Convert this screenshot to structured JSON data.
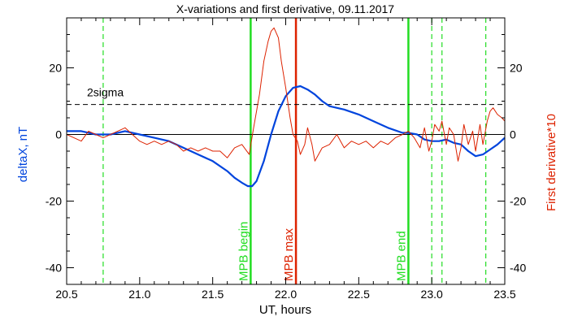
{
  "chart_data": {
    "type": "line",
    "title": "X-variations and first derivative, 09.11.2017",
    "xlabel": "UT, hours",
    "ylabel_left": "deltaX, nT",
    "ylabel_right": "First derivative*10",
    "xlim": [
      20.5,
      23.5
    ],
    "ylim": [
      -45,
      35
    ],
    "xticks": [
      20.5,
      21.0,
      21.5,
      22.0,
      22.5,
      23.0,
      23.5
    ],
    "xtick_labels": [
      "20.5",
      "21.0",
      "21.5",
      "22.0",
      "22.5",
      "23.0",
      "23.5"
    ],
    "yticks": [
      -40,
      -20,
      0,
      20
    ],
    "ytick_labels": [
      "-40",
      "-20",
      "0",
      "20"
    ],
    "grid": false,
    "colors": {
      "deltaX": "#0044dd",
      "derivative": "#dd2200",
      "mpb": "#22dd22",
      "max": "#dd2200",
      "threshold": "#000000"
    },
    "threshold": {
      "label": "2sigma",
      "value": 9
    },
    "zero_line": 0,
    "vlines_solid": [
      {
        "x": 21.76,
        "label": "MPB begin",
        "color": "#22dd22"
      },
      {
        "x": 22.07,
        "label": "MPB max",
        "color": "#dd2200"
      },
      {
        "x": 22.84,
        "label": "MPB end",
        "color": "#22dd22"
      }
    ],
    "vlines_dashed": [
      20.75,
      23.0,
      23.07,
      23.37
    ],
    "series": [
      {
        "key": "deltaX",
        "color": "#0044dd",
        "x": [
          20.5,
          20.6,
          20.7,
          20.8,
          20.9,
          21.0,
          21.1,
          21.2,
          21.3,
          21.4,
          21.5,
          21.6,
          21.65,
          21.7,
          21.74,
          21.77,
          21.8,
          21.85,
          21.9,
          21.95,
          22.0,
          22.05,
          22.1,
          22.15,
          22.2,
          22.25,
          22.3,
          22.4,
          22.5,
          22.6,
          22.7,
          22.8,
          22.84,
          22.9,
          22.95,
          23.0,
          23.05,
          23.1,
          23.15,
          23.2,
          23.25,
          23.3,
          23.35,
          23.4,
          23.45,
          23.5
        ],
        "y": [
          1,
          1,
          0,
          0,
          1,
          0,
          -1,
          -2,
          -4,
          -6,
          -8,
          -11,
          -13,
          -14.5,
          -15.5,
          -15.5,
          -14,
          -8,
          0,
          7,
          11.5,
          14,
          14.5,
          13.5,
          12,
          10,
          8.5,
          7.5,
          6,
          4,
          2,
          0.5,
          0.5,
          0,
          -1.5,
          -2,
          -2,
          -1.5,
          -2.5,
          -3,
          -5,
          -6.5,
          -6,
          -4.5,
          -3,
          -1
        ]
      },
      {
        "key": "derivative",
        "color": "#dd2200",
        "x": [
          20.5,
          20.55,
          20.6,
          20.65,
          20.7,
          20.75,
          20.8,
          20.85,
          20.9,
          20.95,
          21.0,
          21.05,
          21.1,
          21.15,
          21.2,
          21.25,
          21.3,
          21.35,
          21.4,
          21.45,
          21.5,
          21.55,
          21.6,
          21.65,
          21.7,
          21.75,
          21.78,
          21.82,
          21.85,
          21.88,
          21.9,
          21.92,
          21.95,
          21.97,
          22.0,
          22.03,
          22.05,
          22.08,
          22.1,
          22.13,
          22.15,
          22.18,
          22.2,
          22.25,
          22.3,
          22.35,
          22.4,
          22.45,
          22.5,
          22.55,
          22.6,
          22.65,
          22.7,
          22.75,
          22.8,
          22.84,
          22.88,
          22.92,
          22.95,
          22.98,
          23.0,
          23.02,
          23.05,
          23.07,
          23.1,
          23.12,
          23.15,
          23.18,
          23.2,
          23.22,
          23.25,
          23.28,
          23.3,
          23.33,
          23.35,
          23.38,
          23.4,
          23.42,
          23.45,
          23.48,
          23.5
        ],
        "y": [
          0,
          -1,
          -2,
          1,
          0,
          -1,
          0,
          1,
          2,
          0,
          -2,
          -3,
          -2,
          -3,
          -2,
          -3,
          -5,
          -4,
          -5,
          -4,
          -5,
          -5,
          -7,
          -4,
          -3,
          -6,
          2,
          12,
          22,
          28,
          31,
          32,
          29,
          22,
          14,
          5,
          0,
          -2,
          -6,
          -3,
          2,
          -3,
          -8,
          -4,
          -3,
          0,
          -4,
          -2,
          -3,
          -2,
          -4,
          -2,
          -3,
          -1,
          0,
          1,
          -1,
          -4,
          2,
          -5,
          -2,
          3,
          1,
          4,
          -3,
          2,
          0,
          -8,
          -4,
          3,
          -3,
          1,
          -5,
          3,
          -3,
          4,
          7,
          8,
          6,
          5,
          4
        ]
      }
    ]
  }
}
